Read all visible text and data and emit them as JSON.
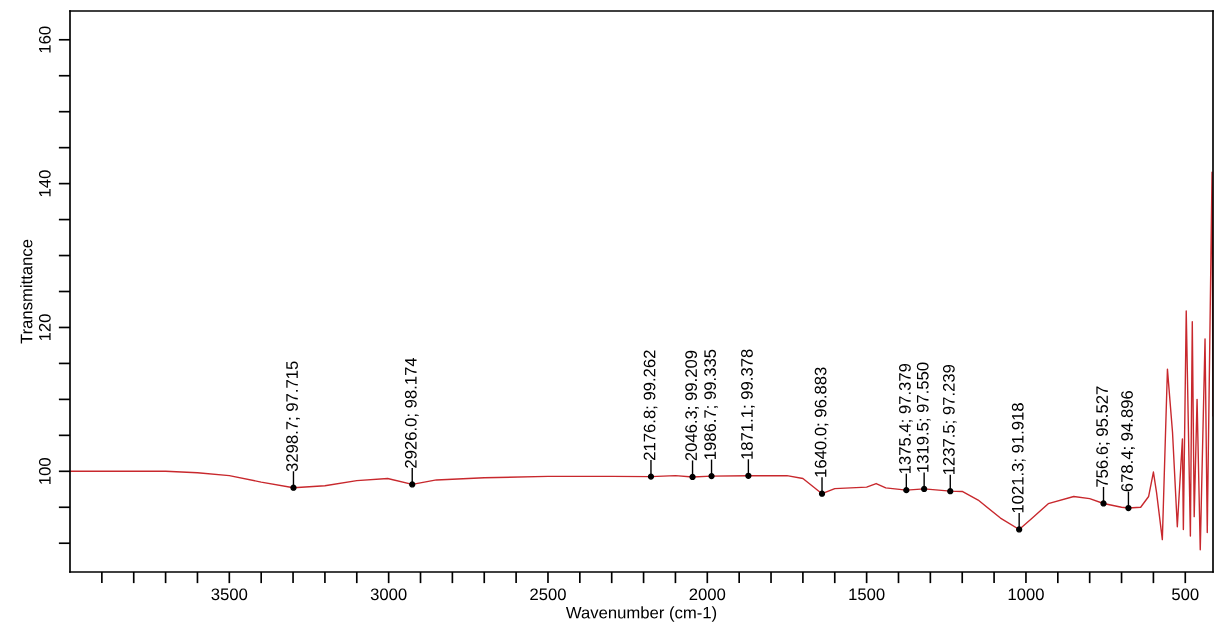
{
  "chart_data": {
    "type": "line",
    "xlabel": "Wavenumber (cm-1)",
    "ylabel": "Transmittance",
    "xlim": [
      4000,
      413
    ],
    "ylim": [
      86,
      164
    ],
    "xticks": [
      {
        "value": 3900,
        "label": null
      },
      {
        "value": 3800,
        "label": null
      },
      {
        "value": 3700,
        "label": null
      },
      {
        "value": 3600,
        "label": null
      },
      3500,
      {
        "value": 3400,
        "label": null
      },
      {
        "value": 3300,
        "label": null
      },
      {
        "value": 3200,
        "label": null
      },
      {
        "value": 3100,
        "label": null
      },
      3000,
      {
        "value": 2900,
        "label": null
      },
      {
        "value": 2800,
        "label": null
      },
      {
        "value": 2700,
        "label": null
      },
      {
        "value": 2600,
        "label": null
      },
      2500,
      {
        "value": 2400,
        "label": null
      },
      {
        "value": 2300,
        "label": null
      },
      {
        "value": 2200,
        "label": null
      },
      {
        "value": 2100,
        "label": null
      },
      2000,
      {
        "value": 1900,
        "label": null
      },
      {
        "value": 1800,
        "label": null
      },
      {
        "value": 1700,
        "label": null
      },
      {
        "value": 1600,
        "label": null
      },
      1500,
      {
        "value": 1400,
        "label": null
      },
      {
        "value": 1300,
        "label": null
      },
      {
        "value": 1200,
        "label": null
      },
      {
        "value": 1100,
        "label": null
      },
      1000,
      {
        "value": 900,
        "label": null
      },
      {
        "value": 800,
        "label": null
      },
      {
        "value": 700,
        "label": null
      },
      {
        "value": 600,
        "label": null
      },
      500
    ],
    "yticks": [
      {
        "value": 90,
        "label": null
      },
      {
        "value": 95,
        "label": null
      },
      100,
      {
        "value": 105,
        "label": null
      },
      {
        "value": 110,
        "label": null
      },
      {
        "value": 115,
        "label": null
      },
      120,
      {
        "value": 125,
        "label": null
      },
      {
        "value": 130,
        "label": null
      },
      {
        "value": 135,
        "label": null
      },
      140,
      {
        "value": 145,
        "label": null
      },
      {
        "value": 150,
        "label": null
      },
      {
        "value": 155,
        "label": null
      },
      160
    ],
    "grid": false,
    "legend": false,
    "marker": "none",
    "line_style": "solid",
    "series": [
      {
        "color": "#c8282d",
        "x": [
          4000,
          3850,
          3700,
          3600,
          3500,
          3400,
          3298.7,
          3200,
          3100,
          3003,
          2926,
          2850,
          2700,
          2500,
          2300,
          2176.8,
          2100,
          2046.3,
          1986.7,
          1871.1,
          1750,
          1700,
          1640,
          1600,
          1500,
          1470,
          1440,
          1375.4,
          1319.5,
          1237.5,
          1200,
          1150,
          1080,
          1021.3,
          980,
          930,
          850,
          800,
          756.6,
          700,
          678.4,
          640,
          615,
          600,
          590,
          572,
          556,
          540,
          525,
          509,
          506,
          497,
          484,
          478,
          472,
          463,
          453,
          438,
          431,
          416,
          413
        ],
        "values": [
          100.0,
          100.0,
          100.0,
          99.8,
          99.4,
          98.5,
          97.715,
          98.0,
          98.7,
          99.0,
          98.174,
          98.8,
          99.1,
          99.3,
          99.3,
          99.262,
          99.4,
          99.209,
          99.335,
          99.378,
          99.4,
          99.0,
          96.883,
          97.6,
          97.8,
          98.3,
          97.7,
          97.379,
          97.55,
          97.239,
          97.2,
          96.0,
          93.5,
          91.918,
          93.5,
          95.5,
          96.5,
          96.2,
          95.527,
          95.0,
          94.896,
          95.0,
          96.5,
          99.9,
          97.0,
          90.5,
          114.2,
          105.4,
          92.3,
          104.5,
          91.9,
          122.3,
          91.0,
          120.8,
          93.7,
          110.0,
          89.1,
          118.4,
          91.5,
          141.6,
          107.7
        ]
      }
    ],
    "annotations": [
      {
        "text": "3298.7; 97.715",
        "x": 3298.7,
        "y": 97.715
      },
      {
        "text": "2926.0; 98.174",
        "x": 2926.0,
        "y": 98.174
      },
      {
        "text": "2176.8; 99.262",
        "x": 2176.8,
        "y": 99.262
      },
      {
        "text": "2046.3; 99.209",
        "x": 2046.3,
        "y": 99.209
      },
      {
        "text": "1986.7; 99.335",
        "x": 1986.7,
        "y": 99.335
      },
      {
        "text": "1871.1; 99.378",
        "x": 1871.1,
        "y": 99.378
      },
      {
        "text": "1640.0; 96.883",
        "x": 1640.0,
        "y": 96.883
      },
      {
        "text": "1375.4; 97.379",
        "x": 1375.4,
        "y": 97.379
      },
      {
        "text": "1319.5; 97.550",
        "x": 1319.5,
        "y": 97.55
      },
      {
        "text": "1237.5; 97.239",
        "x": 1237.5,
        "y": 97.239
      },
      {
        "text": "1021.3; 91.918",
        "x": 1021.3,
        "y": 91.918
      },
      {
        "text": "756.6; 95.527",
        "x": 756.6,
        "y": 95.527
      },
      {
        "text": "678.4; 94.896",
        "x": 678.4,
        "y": 94.896
      }
    ]
  }
}
